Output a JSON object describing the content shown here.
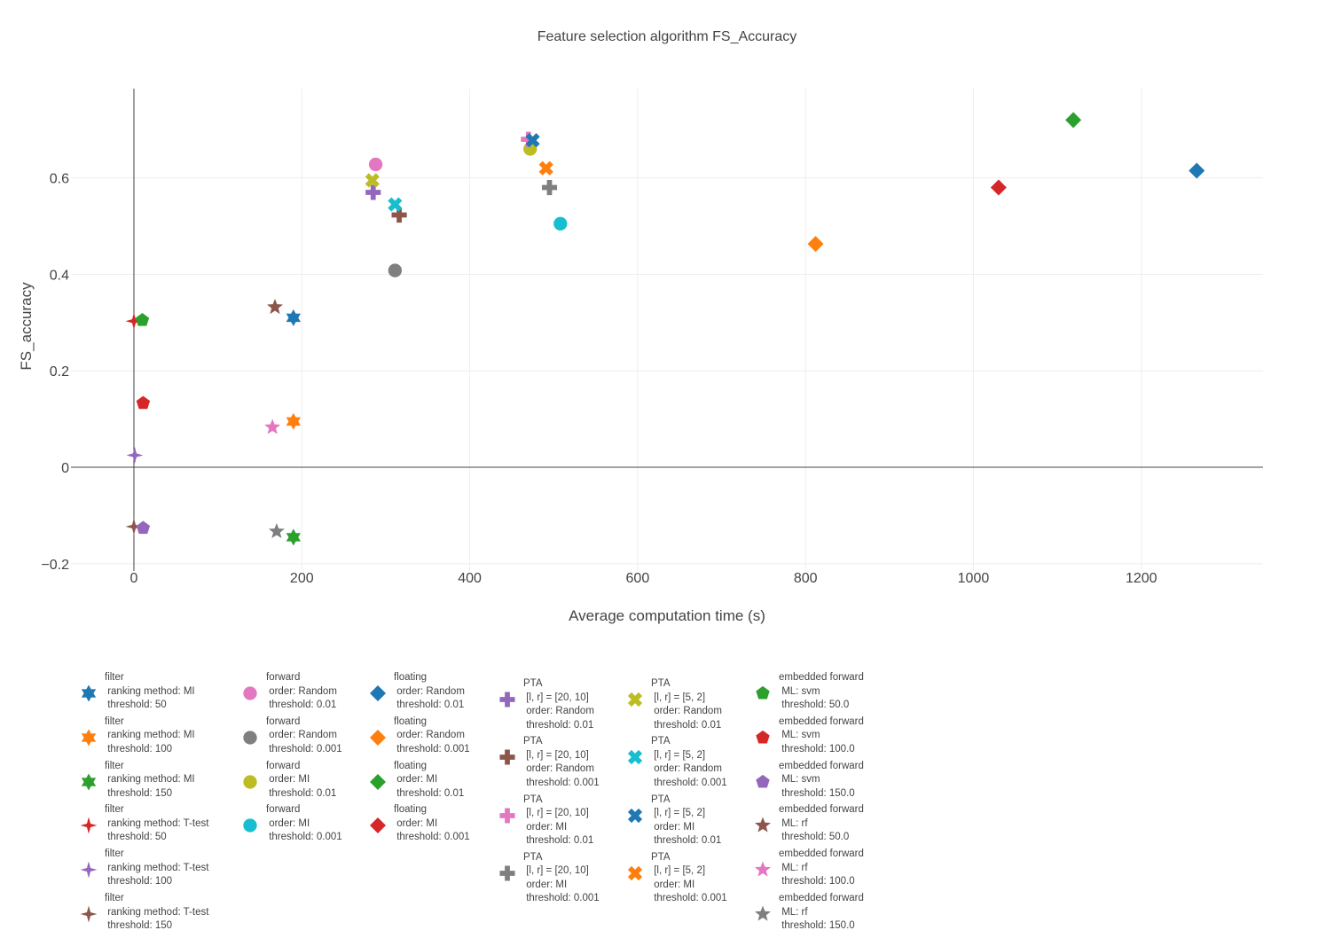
{
  "chart_data": {
    "type": "scatter",
    "title": "Feature selection algorithm FS_Accuracy",
    "xlabel": "Average computation time (s)",
    "ylabel": "FS_accuracy",
    "xlim": [
      -75,
      1345
    ],
    "ylim": [
      -0.215,
      0.785
    ],
    "xticks": [
      0,
      200,
      400,
      600,
      800,
      1000,
      1200
    ],
    "xtick_labels": [
      "0",
      "200",
      "400",
      "600",
      "800",
      "1000",
      "1200"
    ],
    "yticks": [
      -0.2,
      0,
      0.2,
      0.4,
      0.6
    ],
    "ytick_labels": [
      "−0.2",
      "0",
      "0.2",
      "0.4",
      "0.6"
    ],
    "grid": true,
    "legend_position": "bottom",
    "series": [
      {
        "name": "filter\n ranking method: MI\n threshold: 50",
        "symbol": "hexagram",
        "color": "#1f77b4",
        "points": [
          [
            190,
            0.31
          ]
        ]
      },
      {
        "name": "filter\n ranking method: MI\n threshold: 100",
        "symbol": "hexagram",
        "color": "#ff7f0e",
        "points": [
          [
            190,
            0.095
          ]
        ]
      },
      {
        "name": "filter\n ranking method: MI\n threshold: 150",
        "symbol": "hexagram",
        "color": "#2ca02c",
        "points": [
          [
            190,
            -0.145
          ]
        ]
      },
      {
        "name": "filter\n ranking method: T-test\n threshold: 50",
        "symbol": "star4",
        "color": "#d62728",
        "points": [
          [
            0,
            0.303
          ]
        ]
      },
      {
        "name": "filter\n ranking method: T-test\n threshold: 100",
        "symbol": "star4",
        "color": "#9467bd",
        "points": [
          [
            1,
            0.025
          ]
        ]
      },
      {
        "name": "filter\n ranking method: T-test\n threshold: 150",
        "symbol": "star4",
        "color": "#8c564b",
        "points": [
          [
            0,
            -0.123
          ]
        ]
      },
      {
        "name": "forward\n order: Random\n threshold: 0.01",
        "symbol": "circle",
        "color": "#e377c2",
        "points": [
          [
            288,
            0.628
          ]
        ]
      },
      {
        "name": "forward\n order: Random\n threshold: 0.001",
        "symbol": "circle",
        "color": "#7f7f7f",
        "points": [
          [
            311,
            0.408
          ]
        ]
      },
      {
        "name": "forward\n order: MI\n threshold: 0.01",
        "symbol": "circle",
        "color": "#bcbd22",
        "points": [
          [
            472,
            0.66
          ]
        ]
      },
      {
        "name": "forward\n order: MI\n threshold: 0.001",
        "symbol": "circle",
        "color": "#17becf",
        "points": [
          [
            508,
            0.505
          ]
        ]
      },
      {
        "name": "floating\n order: Random\n threshold: 0.01",
        "symbol": "diamond",
        "color": "#1f77b4",
        "points": [
          [
            1266,
            0.615
          ]
        ]
      },
      {
        "name": "floating\n order: Random\n threshold: 0.001",
        "symbol": "diamond",
        "color": "#ff7f0e",
        "points": [
          [
            812,
            0.463
          ]
        ]
      },
      {
        "name": "floating\n order: MI\n threshold: 0.01",
        "symbol": "diamond",
        "color": "#2ca02c",
        "points": [
          [
            1119,
            0.72
          ]
        ]
      },
      {
        "name": "floating\n order: MI\n threshold: 0.001",
        "symbol": "diamond",
        "color": "#d62728",
        "points": [
          [
            1030,
            0.58
          ]
        ]
      },
      {
        "name": "PTA\n [l, r] = [20, 10]\n order: Random\n threshold: 0.01",
        "symbol": "cross",
        "color": "#9467bd",
        "points": [
          [
            285,
            0.57
          ]
        ]
      },
      {
        "name": "PTA\n [l, r] = [20, 10]\n order: Random\n threshold: 0.001",
        "symbol": "cross",
        "color": "#8c564b",
        "points": [
          [
            316,
            0.523
          ]
        ]
      },
      {
        "name": "PTA\n [l, r] = [20, 10]\n order: MI\n threshold: 0.01",
        "symbol": "cross",
        "color": "#e377c2",
        "points": [
          [
            470,
            0.68
          ]
        ]
      },
      {
        "name": "PTA\n [l, r] = [20, 10]\n order: MI\n threshold: 0.001",
        "symbol": "cross",
        "color": "#7f7f7f",
        "points": [
          [
            495,
            0.58
          ]
        ]
      },
      {
        "name": "PTA\n [l, r] = [5, 2]\n order: Random\n threshold: 0.01",
        "symbol": "x",
        "color": "#bcbd22",
        "points": [
          [
            284,
            0.595
          ]
        ]
      },
      {
        "name": "PTA\n [l, r] = [5, 2]\n order: Random\n threshold: 0.001",
        "symbol": "x",
        "color": "#17becf",
        "points": [
          [
            311,
            0.545
          ]
        ]
      },
      {
        "name": "PTA\n [l, r] = [5, 2]\n order: MI\n threshold: 0.01",
        "symbol": "x",
        "color": "#1f77b4",
        "points": [
          [
            475,
            0.678
          ]
        ]
      },
      {
        "name": "PTA\n [l, r] = [5, 2]\n order: MI\n threshold: 0.001",
        "symbol": "x",
        "color": "#ff7f0e",
        "points": [
          [
            491,
            0.62
          ]
        ]
      },
      {
        "name": "embedded forward\n ML: svm\n threshold: 50.0",
        "symbol": "pentagon",
        "color": "#2ca02c",
        "points": [
          [
            10,
            0.305
          ]
        ]
      },
      {
        "name": "embedded forward\n ML: svm\n threshold: 100.0",
        "symbol": "pentagon",
        "color": "#d62728",
        "points": [
          [
            11,
            0.133
          ]
        ]
      },
      {
        "name": "embedded forward\n ML: svm\n threshold: 150.0",
        "symbol": "pentagon",
        "color": "#9467bd",
        "points": [
          [
            11,
            -0.126
          ]
        ]
      },
      {
        "name": "embedded forward\n ML: rf\n threshold: 50.0",
        "symbol": "star",
        "color": "#8c564b",
        "points": [
          [
            168,
            0.332
          ]
        ]
      },
      {
        "name": "embedded forward\n ML: rf\n threshold: 100.0",
        "symbol": "star",
        "color": "#e377c2",
        "points": [
          [
            165,
            0.083
          ]
        ]
      },
      {
        "name": "embedded forward\n ML: rf\n threshold: 150.0",
        "symbol": "star",
        "color": "#7f7f7f",
        "points": [
          [
            170,
            -0.133
          ]
        ]
      }
    ]
  }
}
